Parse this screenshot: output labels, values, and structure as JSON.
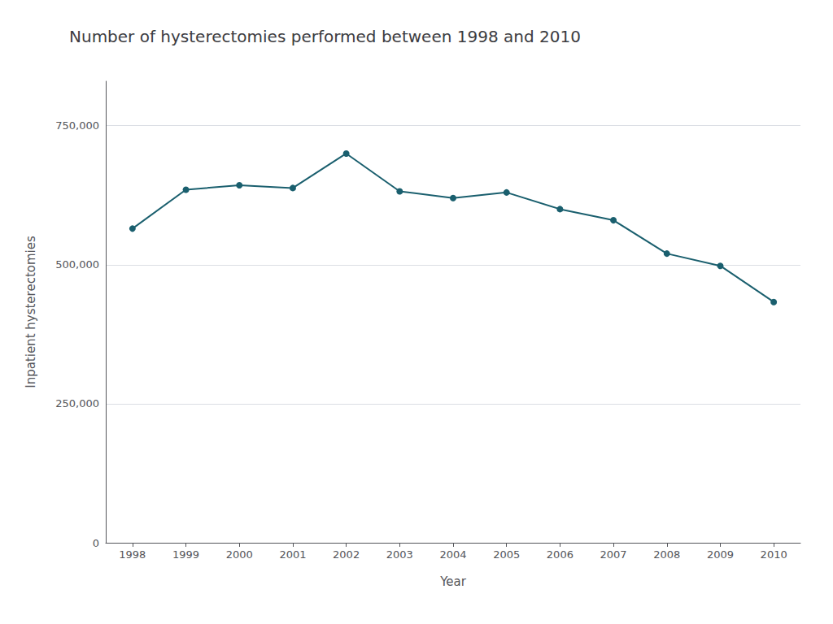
{
  "chart_data": {
    "type": "line",
    "title": "Number of hysterectomies performed between 1998 and 2010",
    "xlabel": "Year",
    "ylabel": "Inpatient hysterectomies",
    "x": [
      1998,
      1999,
      2000,
      2001,
      2002,
      2003,
      2004,
      2005,
      2006,
      2007,
      2008,
      2009,
      2010
    ],
    "values": [
      565000,
      635000,
      643000,
      638000,
      700000,
      632000,
      620000,
      630000,
      600000,
      580000,
      520000,
      498000,
      433000
    ],
    "color": "#1a5f6e",
    "marker": "circle",
    "xlim": [
      1997.5,
      2010.5
    ],
    "xticks": [
      1998,
      1999,
      2000,
      2001,
      2002,
      2003,
      2004,
      2005,
      2006,
      2007,
      2008,
      2009,
      2010
    ],
    "ylim": [
      0,
      830000
    ],
    "yticks": [
      0,
      {
        "value": 250000,
        "label": "250,000"
      },
      {
        "value": 500000,
        "label": "500,000"
      },
      {
        "value": 750000,
        "label": "750,000"
      }
    ],
    "grid": true
  }
}
